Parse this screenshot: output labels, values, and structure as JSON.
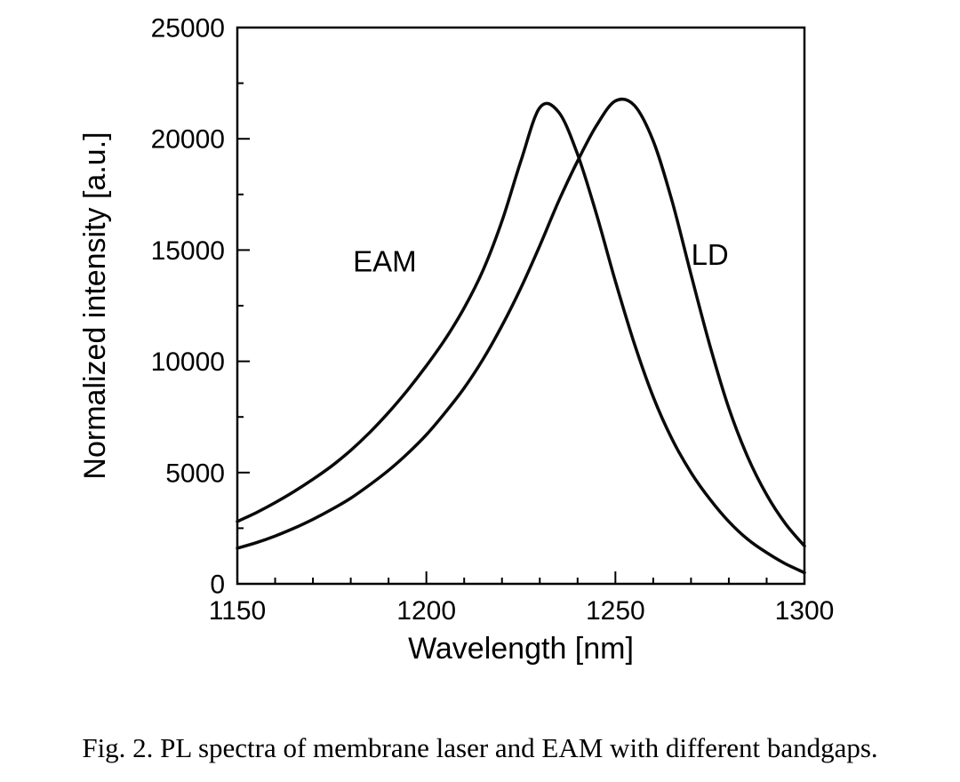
{
  "figure": {
    "caption": "Fig. 2. PL spectra of membrane laser and EAM with different bandgaps."
  },
  "chart_data": {
    "type": "line",
    "title": "",
    "xlabel": "Wavelength [nm]",
    "ylabel": "Normalized intensity [a.u.]",
    "xlim": [
      1150,
      1300
    ],
    "ylim": [
      0,
      25000
    ],
    "x_major_ticks": [
      1150,
      1200,
      1250,
      1300
    ],
    "x_minor_step": 10,
    "y_major_ticks": [
      0,
      5000,
      10000,
      15000,
      20000,
      25000
    ],
    "y_minor_step": 2500,
    "grid": false,
    "legend_position": "none",
    "background": "#ffffff",
    "axis_color": "#000000",
    "line_color": "#0a0a0a",
    "x": [
      1150,
      1155,
      1160,
      1165,
      1170,
      1175,
      1180,
      1185,
      1190,
      1195,
      1200,
      1205,
      1210,
      1215,
      1220,
      1225,
      1230,
      1235,
      1240,
      1245,
      1250,
      1255,
      1260,
      1265,
      1270,
      1275,
      1280,
      1285,
      1290,
      1295,
      1300
    ],
    "series": [
      {
        "name": "EAM",
        "peak_x": 1231,
        "peak_y": 21700,
        "values": [
          2800,
          3200,
          3650,
          4150,
          4700,
          5300,
          6000,
          6800,
          7700,
          8700,
          9800,
          11000,
          12400,
          14100,
          16300,
          19000,
          21400,
          21200,
          19300,
          16600,
          13600,
          10800,
          8400,
          6500,
          5000,
          3800,
          2800,
          2000,
          1400,
          900,
          500
        ],
        "label": {
          "text": "EAM",
          "x": 1189,
          "y": 14500
        }
      },
      {
        "name": "LD",
        "peak_x": 1251,
        "peak_y": 21700,
        "values": [
          1600,
          1850,
          2150,
          2500,
          2900,
          3350,
          3850,
          4450,
          5100,
          5850,
          6700,
          7700,
          8800,
          10100,
          11600,
          13300,
          15200,
          17200,
          19000,
          20600,
          21700,
          21500,
          19900,
          17200,
          13900,
          10700,
          7900,
          5700,
          4000,
          2700,
          1700
        ],
        "label": {
          "text": "LD",
          "x": 1275,
          "y": 14800
        }
      }
    ]
  }
}
